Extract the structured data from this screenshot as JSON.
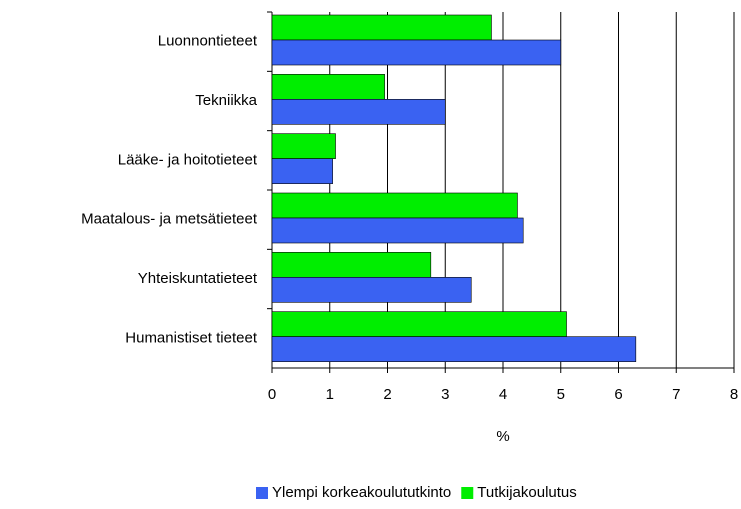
{
  "chart_data": {
    "type": "hbar",
    "categories": [
      "Luonnontieteet",
      "Tekniikka",
      "Lääke- ja hoitotieteet",
      "Maatalous- ja metsätieteet",
      "Yhteiskuntatieteet",
      "Humanistiset tieteet"
    ],
    "series": [
      {
        "name": "Ylempi korkeakoulututkinto",
        "color": "#3a62f2",
        "values": [
          5.0,
          3.0,
          1.05,
          4.35,
          3.45,
          6.3
        ]
      },
      {
        "name": "Tutkijakoulutus",
        "color": "#00ee00",
        "values": [
          3.8,
          1.95,
          1.1,
          4.25,
          2.75,
          5.1
        ]
      }
    ],
    "xlabel": "%",
    "xlim": [
      0,
      8
    ],
    "xticks": [
      0,
      1,
      2,
      3,
      4,
      5,
      6,
      7,
      8
    ],
    "grid": true,
    "legend": "bottom-right"
  }
}
